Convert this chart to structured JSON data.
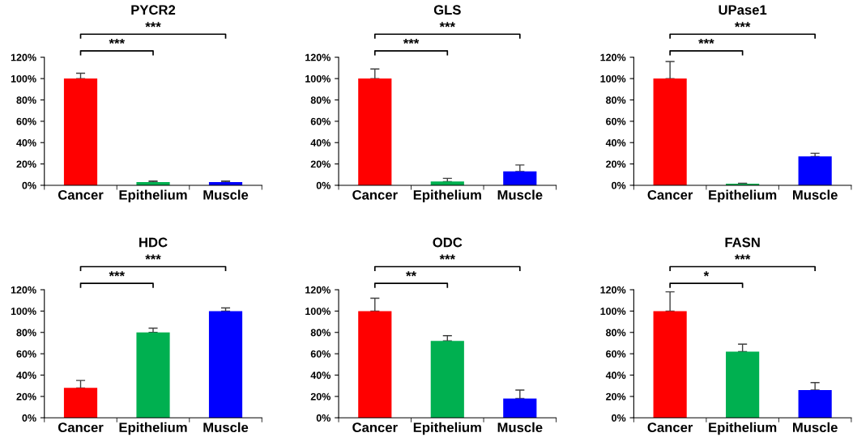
{
  "chart_data": [
    {
      "type": "bar",
      "title": "PYCR2",
      "categories": [
        "Cancer",
        "Epithelium",
        "Muscle"
      ],
      "values": [
        100,
        3,
        3
      ],
      "errors": [
        [
          100,
          105
        ],
        [
          3,
          4
        ],
        [
          3,
          4
        ]
      ],
      "colors": [
        "#ff0000",
        "#00b050",
        "#0000ff"
      ],
      "ylim": [
        0,
        120
      ],
      "yticks": [
        {
          "value": 0,
          "label": "0%"
        },
        {
          "value": 20,
          "label": "20%"
        },
        {
          "value": 40,
          "label": "40%"
        },
        {
          "value": 60,
          "label": "60%"
        },
        {
          "value": 80,
          "label": "80%"
        },
        {
          "value": 100,
          "label": "100%"
        },
        {
          "value": 120,
          "label": "120%"
        }
      ],
      "annotations": [
        "***",
        "***"
      ]
    },
    {
      "type": "bar",
      "title": "GLS",
      "categories": [
        "Cancer",
        "Epithelium",
        "Muscle"
      ],
      "values": [
        100,
        3.5,
        13
      ],
      "errors": [
        [
          100,
          109
        ],
        [
          3.5,
          6.5
        ],
        [
          13,
          19
        ]
      ],
      "colors": [
        "#ff0000",
        "#00b050",
        "#0000ff"
      ],
      "ylim": [
        0,
        120
      ],
      "yticks": [
        {
          "value": 0,
          "label": "0%"
        },
        {
          "value": 20,
          "label": "20%"
        },
        {
          "value": 40,
          "label": "40%"
        },
        {
          "value": 60,
          "label": "60%"
        },
        {
          "value": 80,
          "label": "80%"
        },
        {
          "value": 100,
          "label": "100%"
        },
        {
          "value": 120,
          "label": "120%"
        }
      ],
      "annotations": [
        "***",
        "***"
      ]
    },
    {
      "type": "bar",
      "title": "UPase1",
      "categories": [
        "Cancer",
        "Epithelium",
        "Muscle"
      ],
      "values": [
        100,
        1.5,
        27
      ],
      "errors": [
        [
          100,
          116
        ],
        [
          1.5,
          2
        ],
        [
          27,
          30
        ]
      ],
      "colors": [
        "#ff0000",
        "#00b050",
        "#0000ff"
      ],
      "ylim": [
        0,
        120
      ],
      "yticks": [
        {
          "value": 0,
          "label": "0%"
        },
        {
          "value": 20,
          "label": "20%"
        },
        {
          "value": 40,
          "label": "40%"
        },
        {
          "value": 60,
          "label": "60%"
        },
        {
          "value": 80,
          "label": "80%"
        },
        {
          "value": 100,
          "label": "100%"
        },
        {
          "value": 120,
          "label": "120%"
        }
      ],
      "annotations": [
        "***",
        "***"
      ]
    },
    {
      "type": "bar",
      "title": "HDC",
      "categories": [
        "Cancer",
        "Epithelium",
        "Muscle"
      ],
      "values": [
        28,
        80,
        100
      ],
      "errors": [
        [
          28,
          35
        ],
        [
          80,
          84
        ],
        [
          100,
          103
        ]
      ],
      "colors": [
        "#ff0000",
        "#00b050",
        "#0000ff"
      ],
      "ylim": [
        0,
        120
      ],
      "yticks": [
        {
          "value": 0,
          "label": "0%"
        },
        {
          "value": 20,
          "label": "20%"
        },
        {
          "value": 40,
          "label": "40%"
        },
        {
          "value": 60,
          "label": "60%"
        },
        {
          "value": 80,
          "label": "80%"
        },
        {
          "value": 100,
          "label": "100%"
        },
        {
          "value": 120,
          "label": "120%"
        }
      ],
      "annotations": [
        "***",
        "***"
      ]
    },
    {
      "type": "bar",
      "title": "ODC",
      "categories": [
        "Cancer",
        "Epithelium",
        "Muscle"
      ],
      "values": [
        100,
        72,
        18
      ],
      "errors": [
        [
          100,
          112
        ],
        [
          72,
          77
        ],
        [
          18,
          26
        ]
      ],
      "colors": [
        "#ff0000",
        "#00b050",
        "#0000ff"
      ],
      "ylim": [
        0,
        120
      ],
      "yticks": [
        {
          "value": 0,
          "label": "0%"
        },
        {
          "value": 20,
          "label": "20%"
        },
        {
          "value": 40,
          "label": "40%"
        },
        {
          "value": 60,
          "label": "60%"
        },
        {
          "value": 80,
          "label": "80%"
        },
        {
          "value": 100,
          "label": "100%"
        },
        {
          "value": 120,
          "label": "120%"
        }
      ],
      "annotations": [
        "**",
        "***"
      ]
    },
    {
      "type": "bar",
      "title": "FASN",
      "categories": [
        "Cancer",
        "Epithelium",
        "Muscle"
      ],
      "values": [
        100,
        62,
        26
      ],
      "errors": [
        [
          100,
          118
        ],
        [
          62,
          69
        ],
        [
          26,
          33
        ]
      ],
      "colors": [
        "#ff0000",
        "#00b050",
        "#0000ff"
      ],
      "ylim": [
        0,
        120
      ],
      "yticks": [
        {
          "value": 0,
          "label": "0%"
        },
        {
          "value": 20,
          "label": "20%"
        },
        {
          "value": 40,
          "label": "40%"
        },
        {
          "value": 60,
          "label": "60%"
        },
        {
          "value": 80,
          "label": "80%"
        },
        {
          "value": 100,
          "label": "100%"
        },
        {
          "value": 120,
          "label": "120%"
        }
      ],
      "annotations": [
        "*",
        "***"
      ]
    }
  ]
}
